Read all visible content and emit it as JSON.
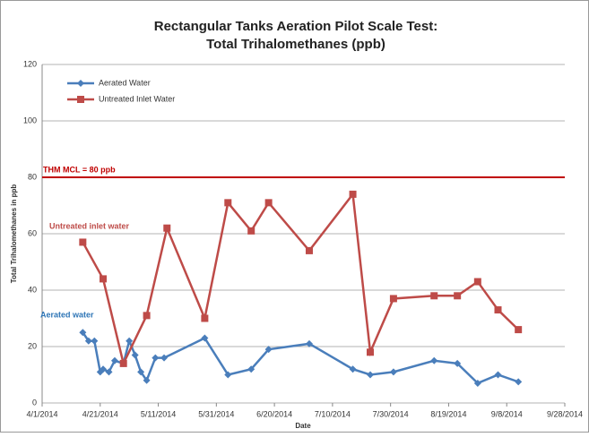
{
  "chart_data": {
    "type": "line",
    "title": [
      "Rectangular Tanks Aeration Pilot Scale Test:",
      "Total Trihalomethanes (ppb)"
    ],
    "xlabel": "Date",
    "ylabel": "Total Trihalomethanes in ppb",
    "xlim": [
      "4/1/2014",
      "9/28/2014"
    ],
    "xticks": [
      "4/1/2014",
      "4/21/2014",
      "5/11/2014",
      "5/31/2014",
      "6/20/2014",
      "7/10/2014",
      "7/30/2014",
      "8/19/2014",
      "9/8/2014",
      "9/28/2014"
    ],
    "ylim": [
      0,
      120
    ],
    "yticks": [
      0,
      20,
      40,
      60,
      80,
      100,
      120
    ],
    "grid": true,
    "legend": "upper left",
    "series": [
      {
        "name": "Aerated Water",
        "color": "#4a7ebb",
        "marker": "diamond",
        "x": [
          "4/15/2014",
          "4/17/2014",
          "4/19/2014",
          "4/21/2014",
          "4/22/2014",
          "4/24/2014",
          "4/26/2014",
          "4/29/2014",
          "5/1/2014",
          "5/3/2014",
          "5/5/2014",
          "5/7/2014",
          "5/10/2014",
          "5/13/2014",
          "5/27/2014",
          "6/4/2014",
          "6/12/2014",
          "6/18/2014",
          "7/2/2014",
          "7/17/2014",
          "7/23/2014",
          "7/31/2014",
          "8/14/2014",
          "8/22/2014",
          "8/29/2014",
          "9/5/2014",
          "9/12/2014"
        ],
        "values": [
          25,
          22,
          22,
          11,
          12,
          11,
          15,
          14,
          22,
          17,
          11,
          8,
          16,
          16,
          23,
          10,
          12,
          19,
          21,
          12,
          10,
          11,
          15,
          14,
          7,
          10,
          7.5
        ]
      },
      {
        "name": "Untreated Inlet Water",
        "color": "#be4b48",
        "marker": "square",
        "x": [
          "4/15/2014",
          "4/22/2014",
          "4/29/2014",
          "5/7/2014",
          "5/14/2014",
          "5/27/2014",
          "6/4/2014",
          "6/12/2014",
          "6/18/2014",
          "7/2/2014",
          "7/17/2014",
          "7/23/2014",
          "7/31/2014",
          "8/14/2014",
          "8/22/2014",
          "8/29/2014",
          "9/5/2014",
          "9/12/2014"
        ],
        "values": [
          57,
          44,
          14,
          31,
          62,
          30,
          71,
          61,
          71,
          54,
          74,
          18,
          37,
          38,
          38,
          43,
          33,
          26
        ]
      }
    ],
    "reference_line": {
      "label": "THM MCL = 80 ppb",
      "value": 80,
      "color": "#c00000"
    },
    "annotations": [
      {
        "text": "Untreated inlet water",
        "color": "#be4b48"
      },
      {
        "text": "Aerated water",
        "color": "#2e75b6"
      }
    ]
  }
}
